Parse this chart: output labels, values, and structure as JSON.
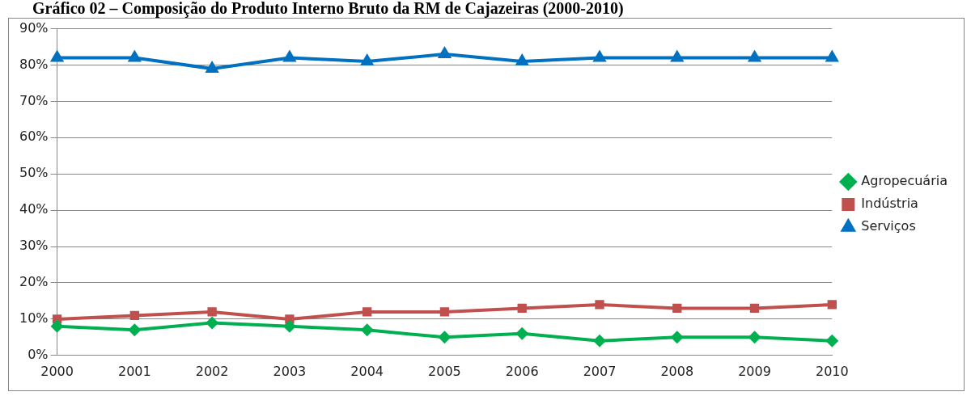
{
  "chart_data": {
    "type": "line",
    "title": "Gráfico 02 – Composição do Produto Interno Bruto da RM de Cajazeiras (2000-2010)",
    "categories": [
      "2000",
      "2001",
      "2002",
      "2003",
      "2004",
      "2005",
      "2006",
      "2007",
      "2008",
      "2009",
      "2010"
    ],
    "series": [
      {
        "name": "Agropecuária",
        "color": "#00b050",
        "marker": "diamond",
        "values": [
          8,
          7,
          9,
          8,
          7,
          5,
          6,
          4,
          5,
          5,
          4
        ]
      },
      {
        "name": "Indústria",
        "color": "#c0504d",
        "marker": "square",
        "values": [
          10,
          11,
          12,
          10,
          12,
          12,
          13,
          14,
          13,
          13,
          14
        ]
      },
      {
        "name": "Serviços",
        "color": "#0070c0",
        "marker": "triangle",
        "values": [
          82,
          82,
          79,
          82,
          81,
          83,
          81,
          82,
          82,
          82,
          82
        ]
      }
    ],
    "ylim": [
      0,
      90
    ],
    "yticks": [
      {
        "value": 0,
        "label": "0%"
      },
      {
        "value": 10,
        "label": "10%"
      },
      {
        "value": 20,
        "label": "20%"
      },
      {
        "value": 30,
        "label": "30%"
      },
      {
        "value": 40,
        "label": "40%"
      },
      {
        "value": 50,
        "label": "50%"
      },
      {
        "value": 60,
        "label": "60%"
      },
      {
        "value": 70,
        "label": "70%"
      },
      {
        "value": 80,
        "label": "80%"
      },
      {
        "value": 90,
        "label": "90%"
      }
    ],
    "grid": "y",
    "legend": "right",
    "line_style": "solid"
  }
}
